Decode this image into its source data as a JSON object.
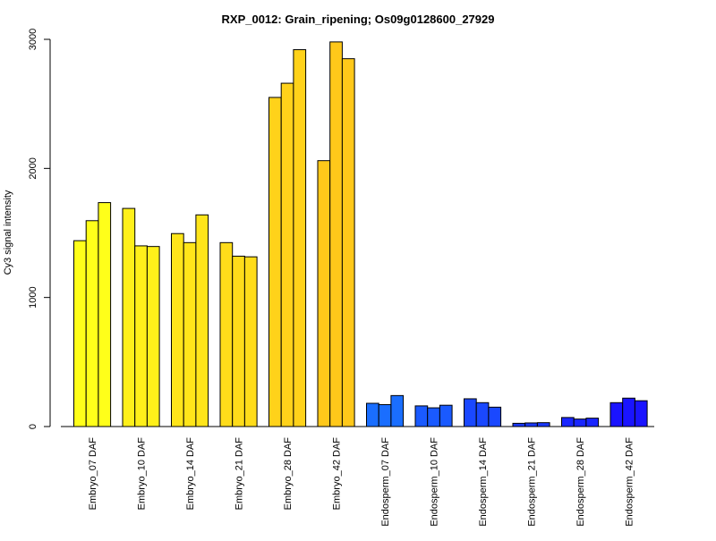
{
  "chart_data": {
    "type": "bar",
    "title": "RXP_0012: Grain_ripening; Os09g0128600_27929",
    "xlabel": "",
    "ylabel": "Cy3 signal intensity",
    "ylim": [
      0,
      3000
    ],
    "y_ticks": [
      "0",
      "1000",
      "2000",
      "3000"
    ],
    "grid": false,
    "legend": "none",
    "bars_per_group": 3,
    "categories": [
      "Embryo_07 DAF",
      "Embryo_10 DAF",
      "Embryo_14 DAF",
      "Embryo_21 DAF",
      "Embryo_28 DAF",
      "Embryo_42 DAF",
      "Endosperm_07 DAF",
      "Endosperm_10 DAF",
      "Endosperm_14 DAF",
      "Endosperm_21 DAF",
      "Endosperm_28 DAF",
      "Endosperm_42 DAF"
    ],
    "group_values": [
      [
        1440,
        1595,
        1735
      ],
      [
        1690,
        1400,
        1395
      ],
      [
        1495,
        1425,
        1640
      ],
      [
        1425,
        1320,
        1315
      ],
      [
        2550,
        2660,
        2920
      ],
      [
        2060,
        2980,
        2850
      ],
      [
        180,
        170,
        240
      ],
      [
        160,
        145,
        165
      ],
      [
        215,
        185,
        150
      ],
      [
        25,
        28,
        30
      ],
      [
        70,
        58,
        65
      ],
      [
        185,
        220,
        200
      ]
    ],
    "group_colors": [
      "#FFFF1A",
      "#FFF01A",
      "#FFE51A",
      "#FFDC1A",
      "#FFD21A",
      "#FFC81A",
      "#1A6EFF",
      "#1A5AFF",
      "#1A48FF",
      "#1A38FF",
      "#1A26FF",
      "#1A14FF"
    ],
    "bar_outline_color": "#000000"
  }
}
